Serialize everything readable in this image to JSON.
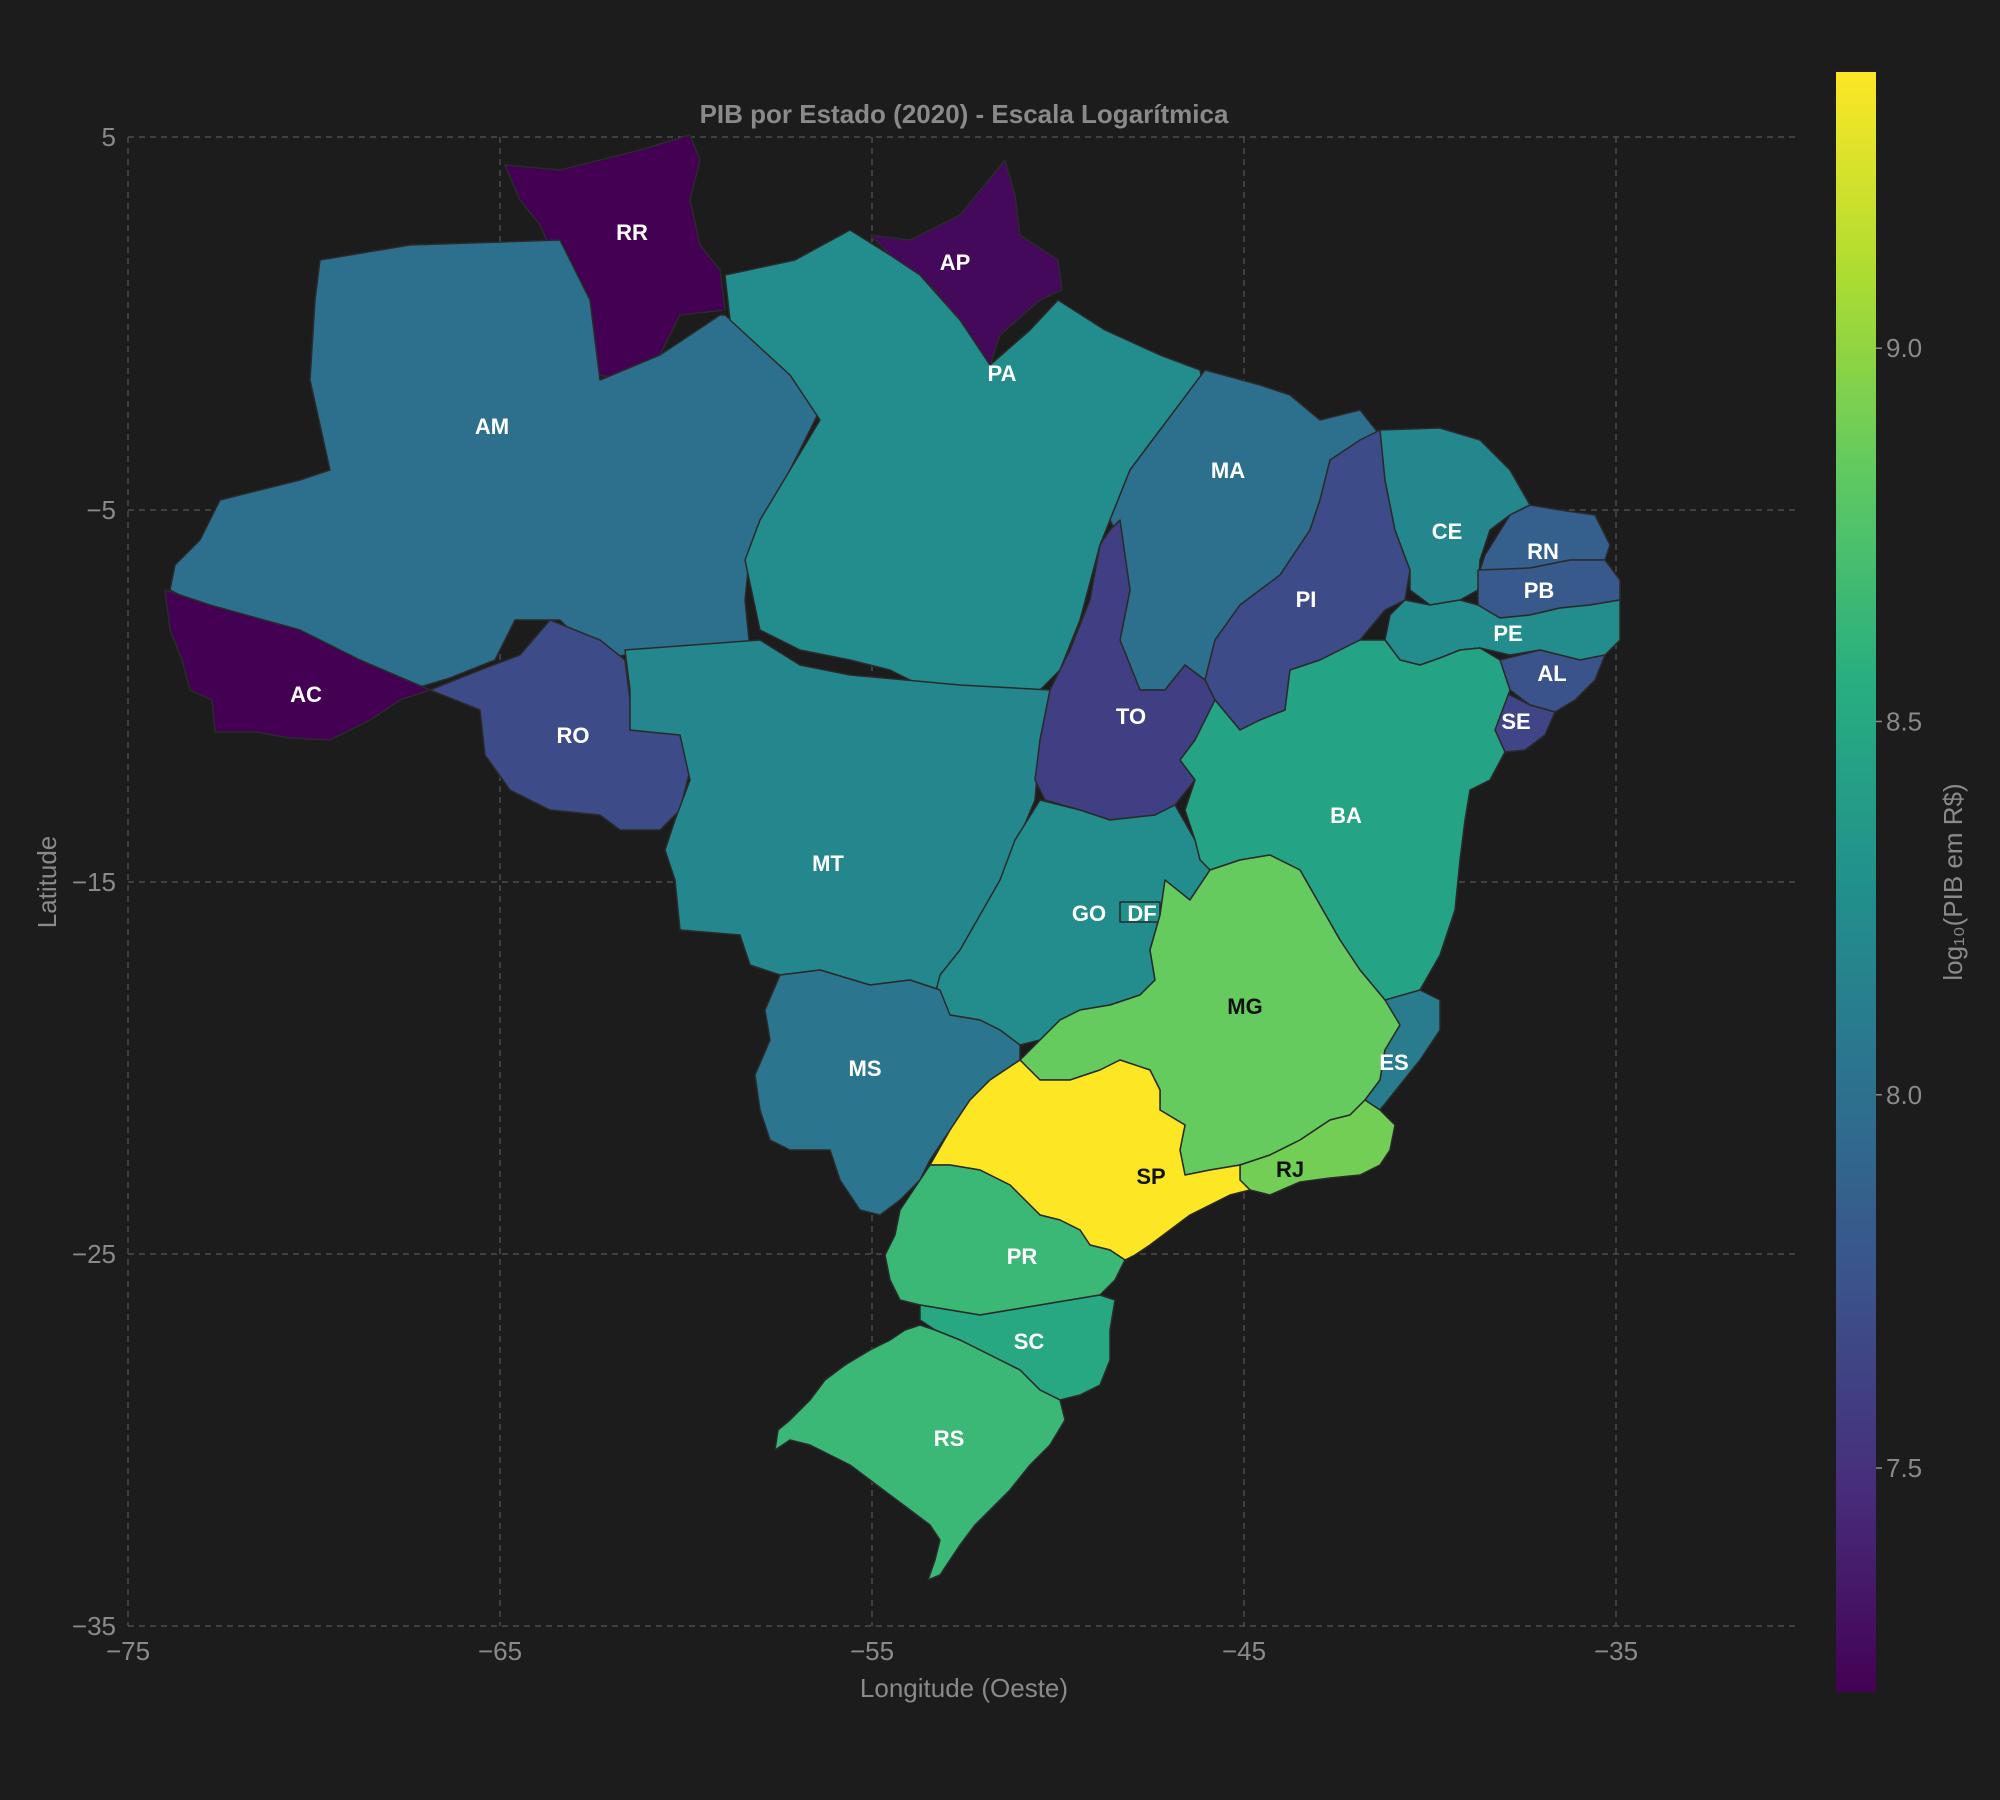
{
  "map": {
    "title": "PIB por Estado (2020) - Escala Logarítmica",
    "xlabel": "Longitude (Oeste)",
    "ylabel": "Latitude",
    "xlim": [
      -75,
      -35
    ],
    "ylim": [
      -35,
      5
    ],
    "x_ticks": [
      "−75",
      "−65",
      "−55",
      "−45",
      "−35"
    ],
    "y_ticks": [
      "5",
      "−5",
      "−15",
      "−25",
      "−35"
    ],
    "grid": true,
    "background": "#1c1c1c",
    "colormap": "viridis",
    "colorbar": {
      "label": "log₁₀(PIB em R$)",
      "range": [
        7.2,
        9.37
      ],
      "ticks": [
        "7.5",
        "8.0",
        "8.5",
        "9.0"
      ]
    },
    "states": [
      {
        "abbr": "AC",
        "value": 7.2
      },
      {
        "abbr": "AP",
        "value": 7.25
      },
      {
        "abbr": "RR",
        "value": 7.2
      },
      {
        "abbr": "AM",
        "value": 8.0
      },
      {
        "abbr": "PA",
        "value": 8.25
      },
      {
        "abbr": "RO",
        "value": 7.7
      },
      {
        "abbr": "MT",
        "value": 8.2
      },
      {
        "abbr": "MA",
        "value": 8.0
      },
      {
        "abbr": "PI",
        "value": 7.7
      },
      {
        "abbr": "TO",
        "value": 7.6
      },
      {
        "abbr": "CE",
        "value": 8.2
      },
      {
        "abbr": "RN",
        "value": 7.85
      },
      {
        "abbr": "PB",
        "value": 7.8
      },
      {
        "abbr": "PE",
        "value": 8.25
      },
      {
        "abbr": "AL",
        "value": 7.75
      },
      {
        "abbr": "SE",
        "value": 7.65
      },
      {
        "abbr": "BA",
        "value": 8.45
      },
      {
        "abbr": "GO",
        "value": 8.25
      },
      {
        "abbr": "DF",
        "value": 8.3
      },
      {
        "abbr": "MS",
        "value": 8.05
      },
      {
        "abbr": "MG",
        "value": 8.85
      },
      {
        "abbr": "ES",
        "value": 8.1
      },
      {
        "abbr": "RJ",
        "value": 8.9
      },
      {
        "abbr": "SP",
        "value": 9.37
      },
      {
        "abbr": "PR",
        "value": 8.65
      },
      {
        "abbr": "SC",
        "value": 8.5
      },
      {
        "abbr": "RS",
        "value": 8.65
      }
    ]
  }
}
